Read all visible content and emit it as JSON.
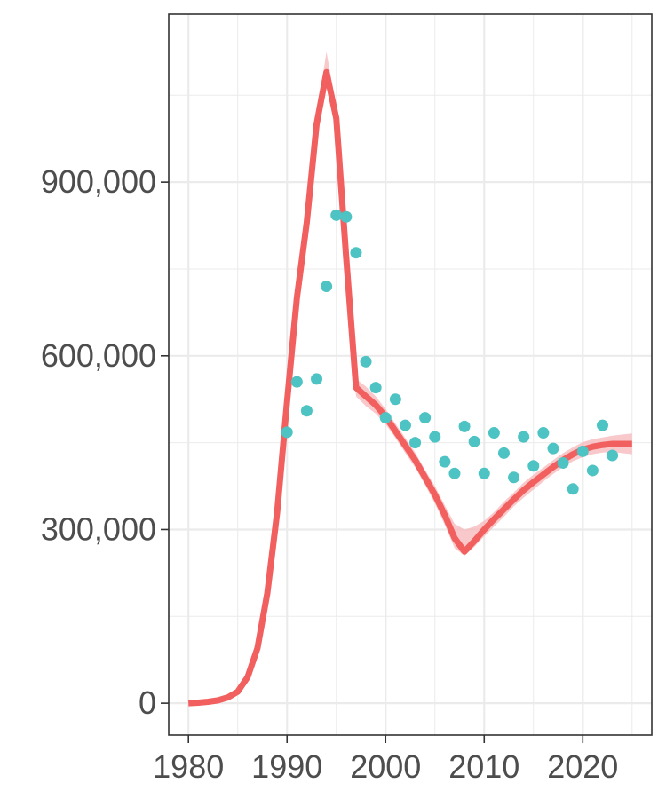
{
  "chart_data": {
    "type": "line",
    "title": "",
    "xlabel": "",
    "ylabel": "",
    "xlim": [
      1978,
      2027
    ],
    "ylim": [
      -55000,
      1190000
    ],
    "x_ticks": [
      1980,
      1990,
      2000,
      2010,
      2020
    ],
    "x_tick_labels": [
      "1980",
      "1990",
      "2000",
      "2010",
      "2020"
    ],
    "x_minor_ticks": [
      1985,
      1995,
      2005,
      2015,
      2025
    ],
    "y_ticks": [
      0,
      300000,
      600000,
      900000
    ],
    "y_tick_labels": [
      "0",
      "300,000",
      "600,000",
      "900,000"
    ],
    "y_minor_ticks": [
      150000,
      450000,
      750000,
      1050000
    ],
    "grid": true,
    "legend": "none",
    "colors": {
      "line": "#f15f5f",
      "band": "#f7b6b8",
      "points": "#4ec3c3",
      "grid": "#ebebeb",
      "frame": "#333333"
    },
    "series": [
      {
        "kind": "line",
        "x": [
          1980,
          1981,
          1982,
          1983,
          1984,
          1985,
          1986,
          1987,
          1988,
          1989,
          1990,
          1991,
          1992,
          1993,
          1994,
          1995,
          1996,
          1997,
          1998,
          1999,
          2000,
          2001,
          2002,
          2003,
          2004,
          2005,
          2006,
          2007,
          2008,
          2009,
          2010,
          2011,
          2012,
          2013,
          2014,
          2015,
          2016,
          2017,
          2018,
          2019,
          2020,
          2021,
          2022,
          2023,
          2024,
          2025
        ],
        "y": [
          0,
          1000,
          2500,
          5000,
          10000,
          20000,
          45000,
          95000,
          190000,
          330000,
          520000,
          700000,
          830000,
          1000000,
          1090000,
          1010000,
          770000,
          545000,
          530000,
          515000,
          495000,
          470000,
          445000,
          420000,
          390000,
          360000,
          325000,
          285000,
          262000,
          280000,
          300000,
          318000,
          335000,
          352000,
          368000,
          382000,
          395000,
          408000,
          420000,
          430000,
          438000,
          443000,
          446000,
          448000,
          448000,
          448000
        ],
        "lower": [
          0,
          1000,
          2500,
          5000,
          10000,
          20000,
          45000,
          95000,
          190000,
          330000,
          510000,
          690000,
          815000,
          985000,
          1070000,
          990000,
          755000,
          530000,
          513000,
          500000,
          482000,
          458000,
          432000,
          407000,
          377000,
          345000,
          308000,
          268000,
          255000,
          270000,
          288000,
          305000,
          322000,
          340000,
          355000,
          369000,
          383000,
          396000,
          408000,
          418000,
          425000,
          430000,
          433000,
          434000,
          432000,
          430000
        ],
        "upper": [
          0,
          1000,
          2500,
          5000,
          10000,
          20000,
          45000,
          95000,
          190000,
          330000,
          530000,
          710000,
          845000,
          1015000,
          1125000,
          1030000,
          785000,
          560000,
          547000,
          530000,
          508000,
          483000,
          458000,
          433000,
          403000,
          375000,
          342000,
          310000,
          300000,
          305000,
          315000,
          330000,
          348000,
          364000,
          381000,
          395000,
          407000,
          420000,
          432000,
          442000,
          451000,
          456000,
          459000,
          462000,
          464000,
          466000
        ]
      },
      {
        "kind": "scatter",
        "x": [
          1990,
          1991,
          1992,
          1993,
          1994,
          1995,
          1996,
          1997,
          1998,
          1999,
          2000,
          2001,
          2002,
          2003,
          2004,
          2005,
          2006,
          2007,
          2008,
          2009,
          2010,
          2011,
          2012,
          2013,
          2014,
          2015,
          2016,
          2017,
          2018,
          2019,
          2020,
          2021,
          2022,
          2023
        ],
        "y": [
          468000,
          555000,
          505000,
          560000,
          720000,
          843000,
          840000,
          778000,
          590000,
          545000,
          493000,
          525000,
          480000,
          450000,
          493000,
          460000,
          417000,
          397000,
          478000,
          452000,
          397000,
          467000,
          432000,
          390000,
          460000,
          410000,
          467000,
          440000,
          415000,
          370000,
          435000,
          402000,
          480000,
          428000
        ]
      }
    ]
  }
}
